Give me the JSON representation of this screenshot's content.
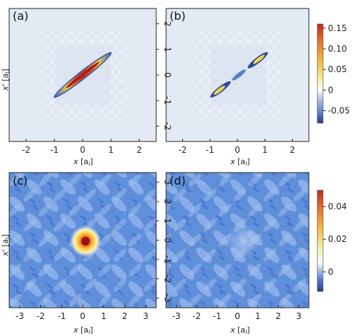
{
  "chart_data": [
    {
      "panel": "(a)",
      "type": "heatmap",
      "xlabel": "x [a_l]",
      "ylabel": "x' [a_l]",
      "xlim": [
        -2.6,
        2.6
      ],
      "ylim": [
        -2.6,
        2.6
      ],
      "xticks": [
        "-2",
        "-1",
        "0",
        "1",
        "2"
      ],
      "yticks": [
        "2",
        "1",
        "0",
        "-1",
        "-2"
      ],
      "description_values": {
        "peak": 0.15,
        "min": -0.05
      },
      "colorbar": "top"
    },
    {
      "panel": "(b)",
      "type": "heatmap",
      "xlabel": "x [a_l]",
      "ylabel": "",
      "xlim": [
        -2.6,
        2.6
      ],
      "ylim": [
        -2.6,
        2.6
      ],
      "xticks": [
        "-2",
        "-1",
        "0",
        "1",
        "2"
      ],
      "colorbar": "top"
    },
    {
      "panel": "(c)",
      "type": "heatmap",
      "xlabel": "x [a_l]",
      "ylabel": "x' [a_l]",
      "xlim": [
        -3.5,
        3.5
      ],
      "ylim": [
        -3.5,
        3.5
      ],
      "xticks": [
        "-3",
        "-2",
        "-1",
        "0",
        "1",
        "2",
        "3"
      ],
      "yticks": [
        "3",
        "2",
        "1",
        "0",
        "-1",
        "-2",
        "-3"
      ],
      "colorbar": "bottom"
    },
    {
      "panel": "(d)",
      "type": "heatmap",
      "xlabel": "x [a_l]",
      "ylabel": "",
      "xlim": [
        -3.5,
        3.5
      ],
      "ylim": [
        -3.5,
        3.5
      ],
      "xticks": [
        "-3",
        "-2",
        "-1",
        "0",
        "1",
        "2",
        "3"
      ],
      "colorbar": "bottom"
    }
  ],
  "colorbars": {
    "top": {
      "ticks": [
        "0.15",
        "0.10",
        "0.05",
        "0",
        "-0.05"
      ],
      "values": [
        0.15,
        0.1,
        0.05,
        0,
        -0.05
      ],
      "range": [
        -0.08,
        0.16
      ]
    },
    "bottom": {
      "ticks": [
        "0.04",
        "0.02",
        "0"
      ],
      "values": [
        0.04,
        0.02,
        0
      ],
      "range": [
        -0.012,
        0.05
      ]
    }
  },
  "labels": {
    "a": "(a)",
    "b": "(b)",
    "c": "(c)",
    "d": "(d)",
    "xlab": "x",
    "xunit": "[a",
    "sub": "l",
    "close": "]",
    "ylab": "x'"
  },
  "colormap": [
    "#2b3a8c",
    "#4a74c6",
    "#7ea6e0",
    "#bcd0ea",
    "#ffffff",
    "#f3e98a",
    "#f5c443",
    "#ef7b27",
    "#c2281f"
  ]
}
